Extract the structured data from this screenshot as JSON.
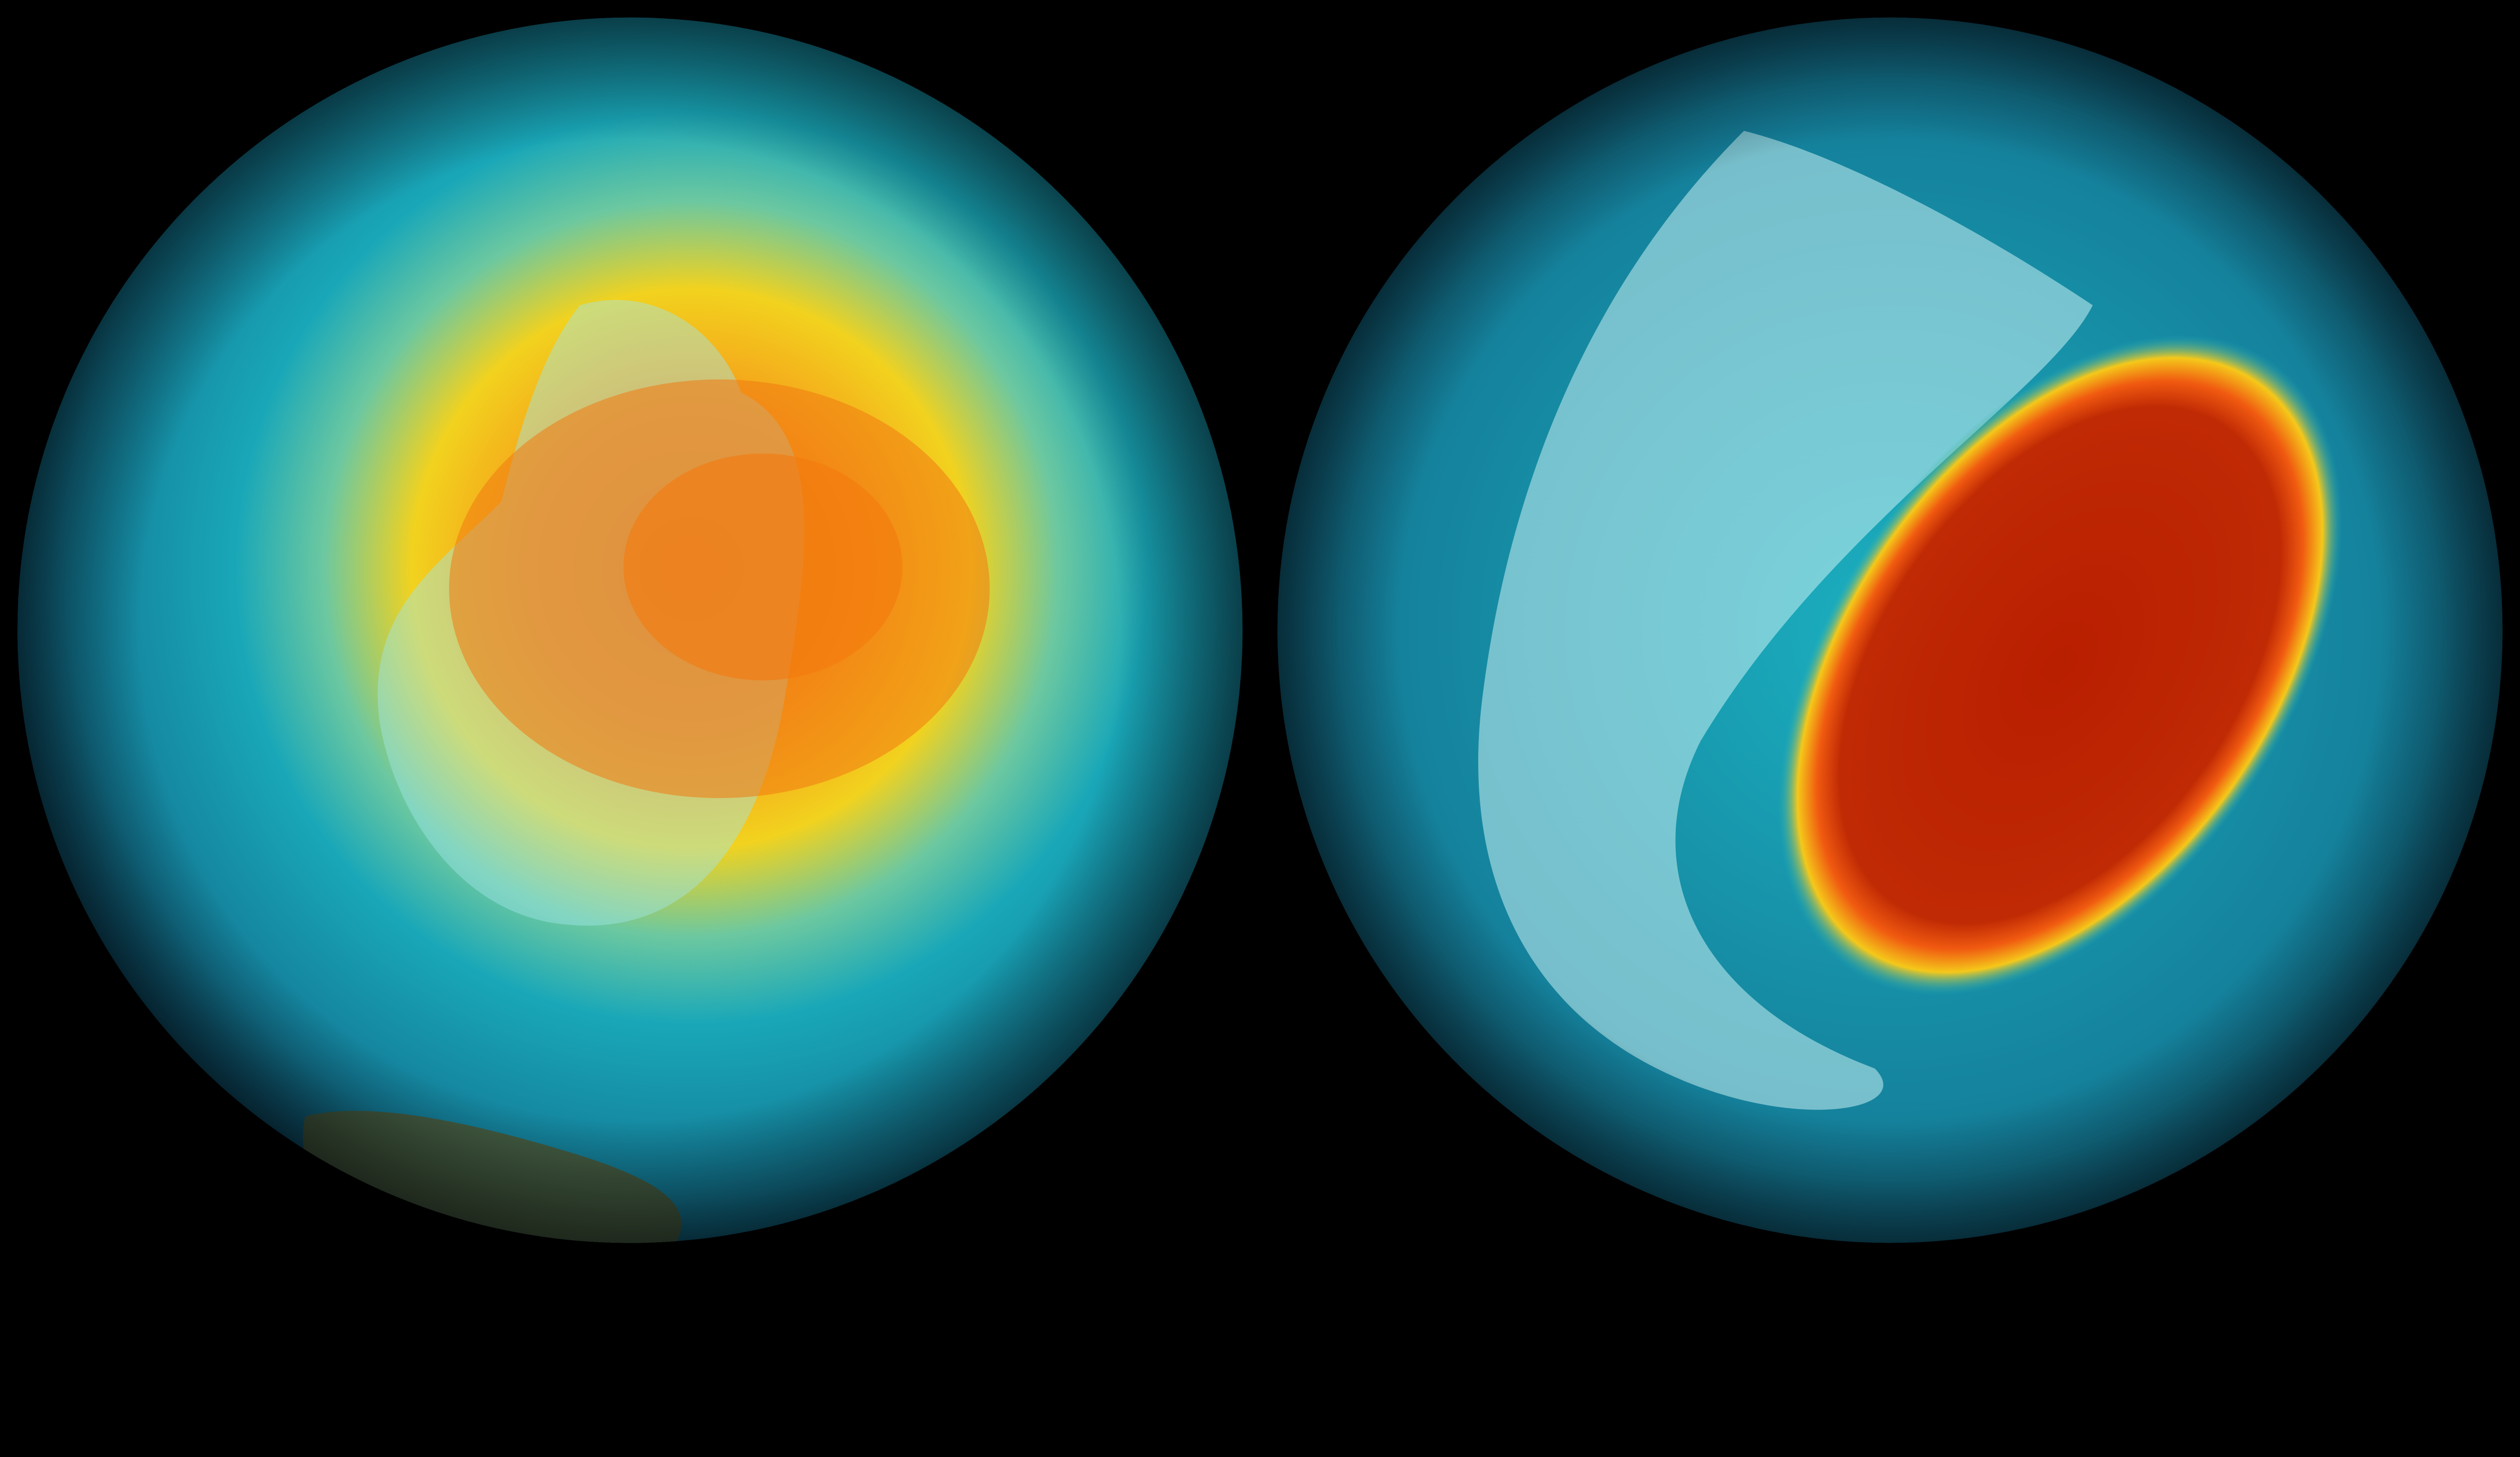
{
  "scene": {
    "background_color": "#000000",
    "globes": [
      {
        "id": "left",
        "ocean_color": "#0f5a78",
        "ring_color": "#19a7b8",
        "hot_color": "#f07a12",
        "warm_color": "#f2d21e",
        "ice_color": "#9fe6ea",
        "land_color": "#4a5a3a"
      },
      {
        "id": "right",
        "ocean_color": "#0d4f6c",
        "ring_color": "#1bb0c0",
        "hot_color": "#b81e00",
        "warm_color": "#f5c81a",
        "ice_color": "#c8f0f2",
        "land_color": "#4f5f4a"
      }
    ]
  }
}
